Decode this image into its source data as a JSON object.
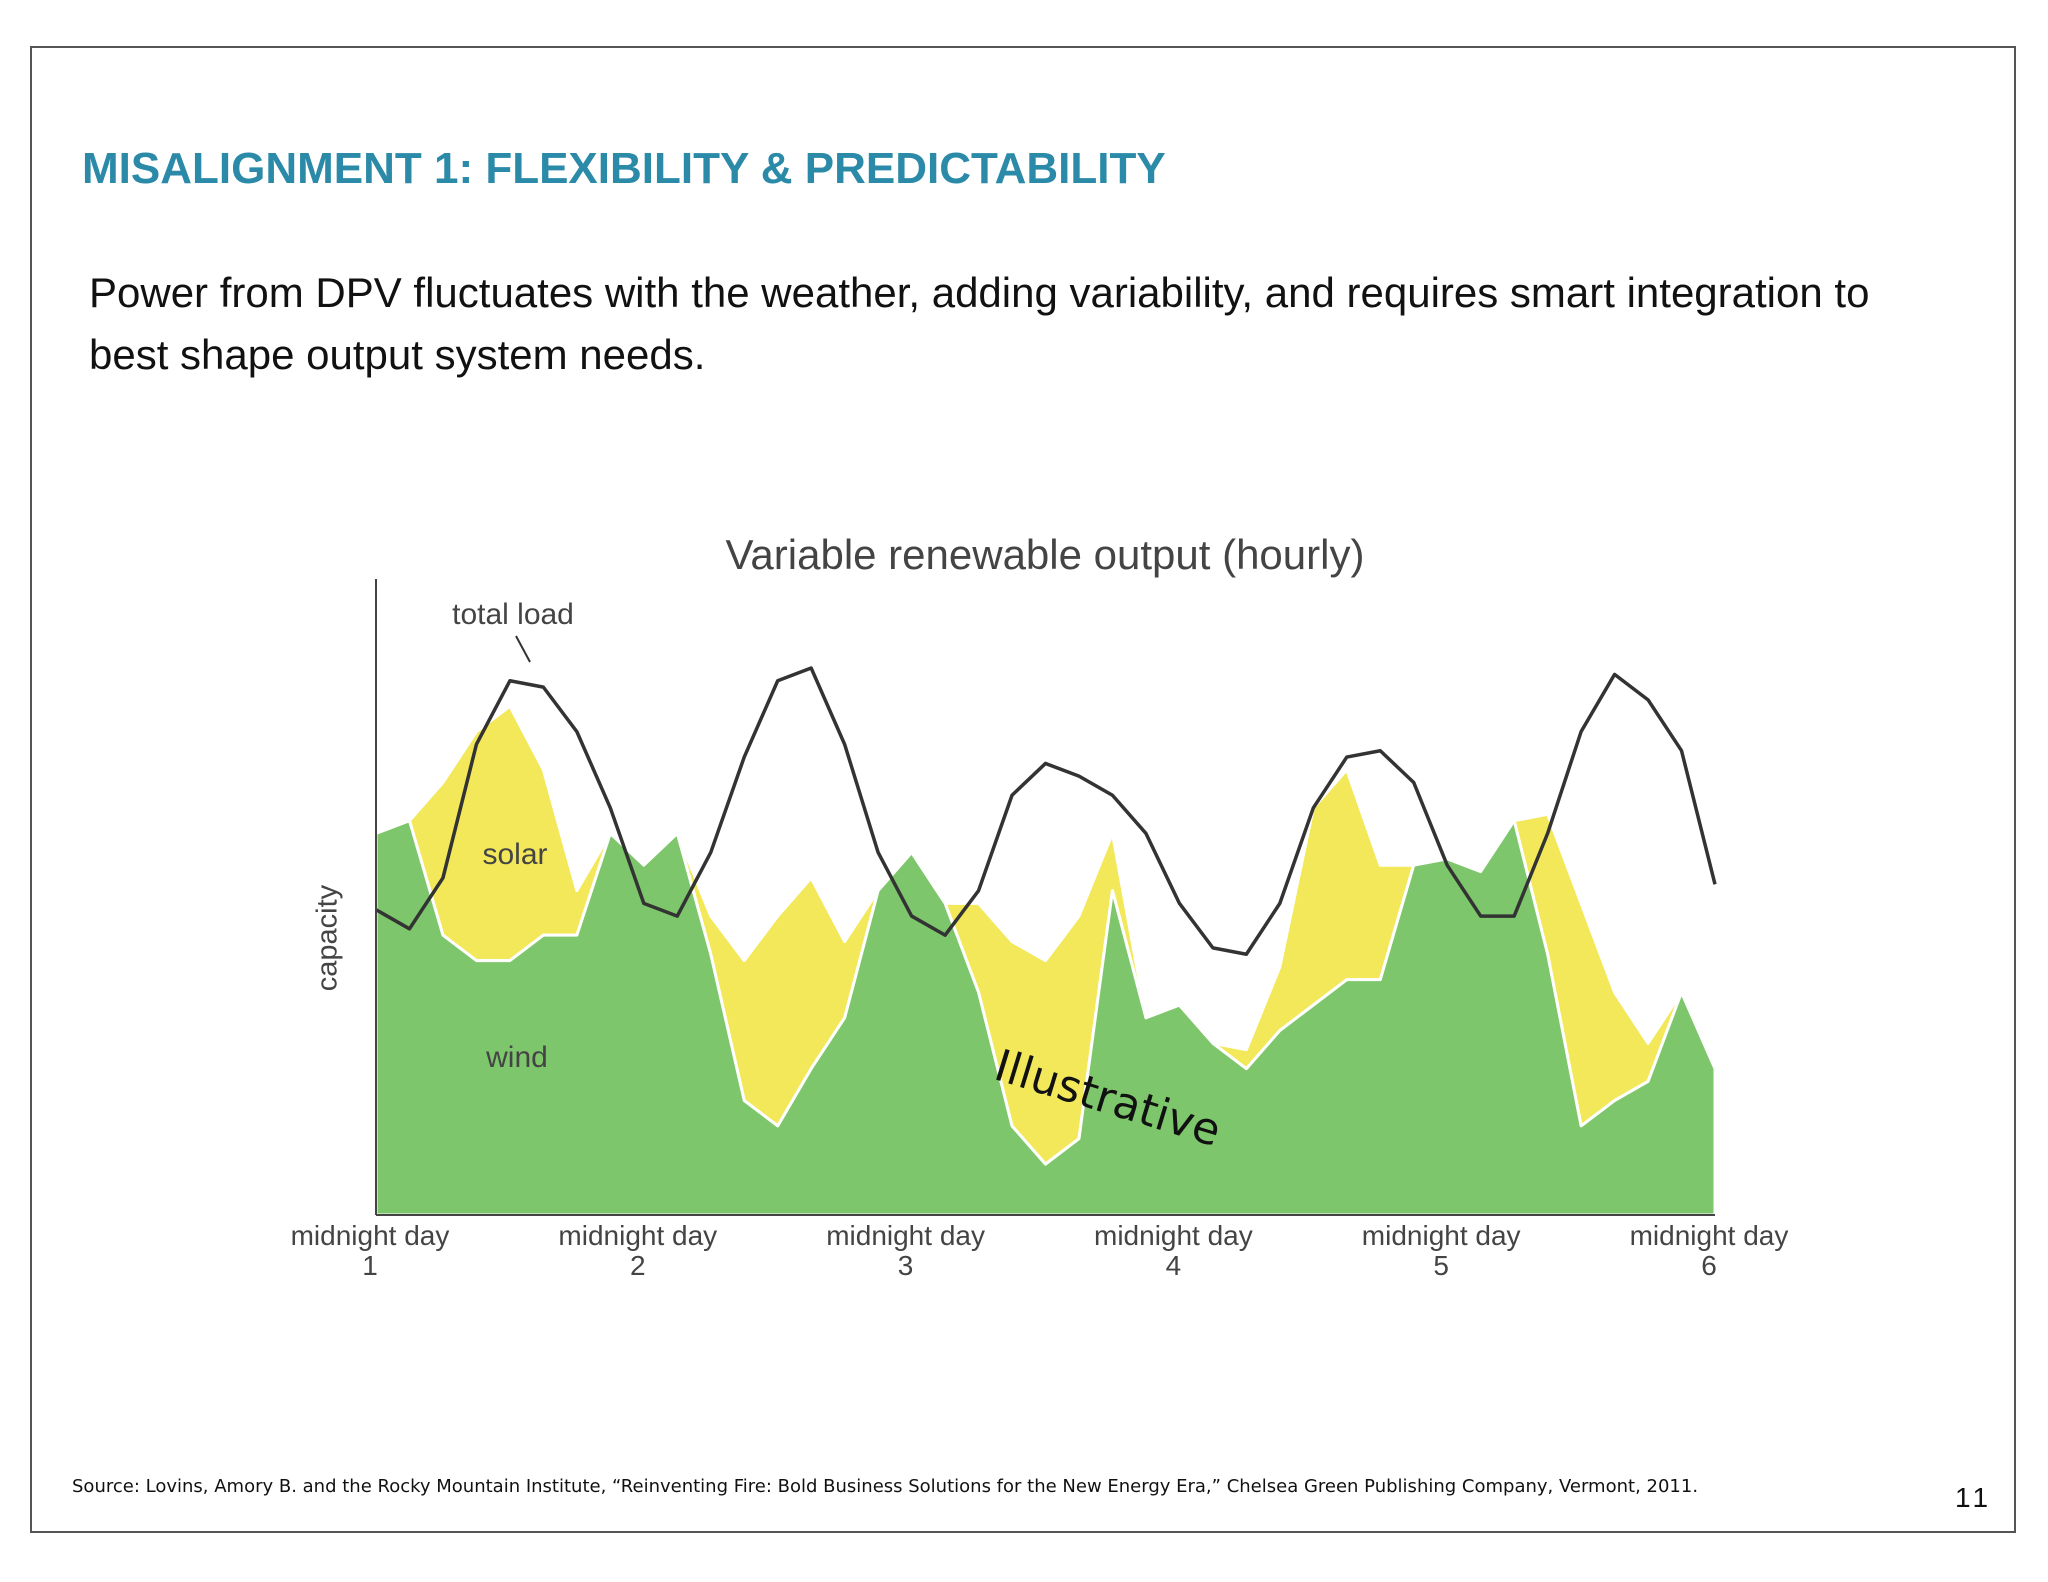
{
  "slide": {
    "title": "MISALIGNMENT 1:  FLEXIBILITY & PREDICTABILITY",
    "body": "Power from DPV fluctuates with the weather, adding variability, and requires smart integration to best shape output system needs.",
    "source": "Source: Lovins, Amory B. and the Rocky Mountain Institute, “Reinventing Fire:  Bold Business Solutions for the New Energy Era,” Chelsea Green Publishing Company, Vermont, 2011.",
    "page_number": "11"
  },
  "chart_data": {
    "type": "area",
    "title": "Variable renewable output (hourly)",
    "y_label": "capacity",
    "annotation": "Illustrative",
    "x": [
      0,
      3,
      6,
      9,
      12,
      15,
      18,
      21,
      24,
      27,
      30,
      33,
      36,
      39,
      42,
      45,
      48,
      51,
      54,
      57,
      60,
      63,
      66,
      69,
      72,
      75,
      78,
      81,
      84,
      87,
      90,
      93,
      96,
      99,
      102,
      105,
      108,
      111,
      114,
      117,
      120
    ],
    "xlim": [
      0,
      120
    ],
    "xticks": [
      {
        "value": 0,
        "label": "midnight day 1"
      },
      {
        "value": 24,
        "label": "midnight day 2"
      },
      {
        "value": 48,
        "label": "midnight day 3"
      },
      {
        "value": 72,
        "label": "midnight day 4"
      },
      {
        "value": 96,
        "label": "midnight day 5"
      },
      {
        "value": 120,
        "label": "midnight day 6"
      }
    ],
    "ylim": [
      0,
      100
    ],
    "series": [
      {
        "name": "wind",
        "kind": "area",
        "color": "#7dc66b",
        "values": [
          60,
          62,
          44,
          40,
          40,
          44,
          44,
          60,
          55,
          60,
          41,
          18,
          14,
          23,
          31,
          51,
          57,
          49,
          35,
          14,
          8,
          12,
          51,
          31,
          33,
          27,
          23,
          29,
          33,
          37,
          37,
          55,
          56,
          54,
          62,
          41,
          14,
          18,
          21,
          35,
          23
        ]
      },
      {
        "name": "solar",
        "kind": "area",
        "stacked": true,
        "color": "#f2e85a",
        "values": [
          0,
          0,
          24,
          36,
          40,
          26,
          7,
          0,
          0,
          0,
          6,
          22,
          33,
          30,
          12,
          0,
          0,
          0,
          14,
          29,
          32,
          35,
          9,
          0,
          0,
          0,
          3,
          10,
          31,
          33,
          18,
          0,
          0,
          0,
          0,
          22,
          35,
          17,
          6,
          0,
          0
        ]
      },
      {
        "name": "total load",
        "kind": "line",
        "color": "#333333",
        "values": [
          48,
          45,
          53,
          74,
          84,
          83,
          76,
          64,
          49,
          47,
          57,
          72,
          84,
          86,
          74,
          57,
          47,
          44,
          51,
          66,
          71,
          69,
          66,
          60,
          49,
          42,
          41,
          49,
          64,
          72,
          73,
          68,
          55,
          47,
          47,
          60,
          76,
          85,
          81,
          73,
          52
        ]
      }
    ]
  }
}
